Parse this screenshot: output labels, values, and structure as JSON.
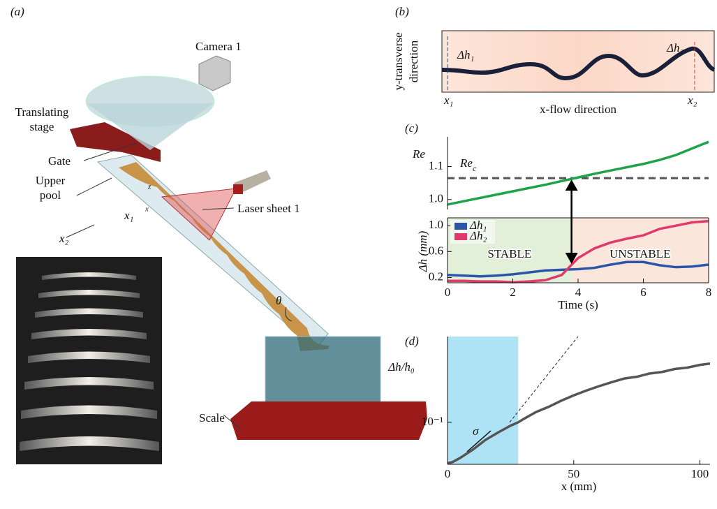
{
  "panel_a": {
    "label": "(a)",
    "camera": "Camera 1",
    "stage": [
      "Translating",
      "stage"
    ],
    "gate": "Gate",
    "pool": [
      "Upper",
      "pool"
    ],
    "laser": "Laser sheet 1",
    "x1": "x₁",
    "x2": "x₂",
    "z": "z",
    "x": "x",
    "theta": "θ",
    "scale": "Scale"
  },
  "panel_b": {
    "label": "(b)",
    "ylabel": [
      "y-transverse",
      "direction"
    ],
    "xlabel": "x-flow direction",
    "x1": "x₁",
    "x2": "x₂",
    "dh1": "Δh₁",
    "dh2": "Δh₂"
  },
  "chart_data": [
    {
      "type": "line",
      "panel": "(c)",
      "ylabel": "Re",
      "x": [
        0,
        0.5,
        1,
        1.5,
        2,
        2.5,
        3,
        3.5,
        4,
        4.5,
        5,
        5.5,
        6,
        6.5,
        7,
        7.5,
        8
      ],
      "xlim": [
        0,
        8
      ],
      "series": [
        {
          "color": "#1fa34a",
          "values": [
            0.985,
            0.995,
            1.005,
            1.015,
            1.025,
            1.035,
            1.045,
            1.056,
            1.067,
            1.078,
            1.088,
            1.098,
            1.108,
            1.12,
            1.135,
            1.155,
            1.175
          ]
        }
      ],
      "ylim": [
        0.97,
        1.19
      ],
      "yticks": [
        {
          "value": 1.0,
          "label": "1.0"
        },
        1.1
      ],
      "threshold": {
        "value": 1.065,
        "label": {
          "base": "Re",
          "sub": "c"
        },
        "color": "#555555"
      }
    },
    {
      "type": "line",
      "xlabel": "Time (s)",
      "ylabel": "Δh (mm)",
      "x": [
        0,
        0.5,
        1,
        1.5,
        2,
        2.5,
        3,
        3.5,
        4,
        4.5,
        5,
        5.5,
        6,
        6.5,
        7,
        7.5,
        8
      ],
      "xlim": [
        0,
        8
      ],
      "xticks": [
        0,
        2,
        4,
        6,
        8
      ],
      "series": [
        {
          "name": "Δh₁",
          "color": "#2a55a8",
          "values": [
            0.24,
            0.23,
            0.22,
            0.23,
            0.25,
            0.28,
            0.31,
            0.32,
            0.33,
            0.35,
            0.4,
            0.44,
            0.44,
            0.39,
            0.36,
            0.37,
            0.4
          ]
        },
        {
          "name": "Δh₂",
          "color": "#e03a6a",
          "values": [
            0.15,
            0.15,
            0.14,
            0.14,
            0.13,
            0.14,
            0.16,
            0.24,
            0.5,
            0.65,
            0.74,
            0.8,
            0.85,
            0.95,
            1.0,
            1.05,
            1.07
          ]
        }
      ],
      "ylim": [
        0.12,
        1.12
      ],
      "yticks": [
        0.2,
        0.6,
        {
          "value": 1.0,
          "label": "1.0"
        }
      ],
      "legend": "upper left",
      "regions": [
        {
          "label": "STABLE",
          "color": "#e2f0da",
          "x": [
            0,
            3.8
          ]
        },
        {
          "label": "UNSTABLE",
          "color": "#fbe6dc",
          "x": [
            3.8,
            8
          ]
        }
      ]
    },
    {
      "type": "line",
      "panel": "(d)",
      "xlabel": "x (mm)",
      "ylabel": "Δh/h₀",
      "ylog": true,
      "x": [
        0,
        2,
        5,
        10,
        15,
        20,
        25,
        28,
        30,
        35,
        40,
        45,
        50,
        55,
        60,
        65,
        70,
        75,
        80,
        85,
        90,
        95,
        100,
        104
      ],
      "series": [
        {
          "color": "#555555",
          "values": [
            0.041,
            0.042,
            0.046,
            0.055,
            0.068,
            0.08,
            0.093,
            0.1,
            0.107,
            0.125,
            0.14,
            0.16,
            0.18,
            0.2,
            0.22,
            0.24,
            0.26,
            0.27,
            0.29,
            0.3,
            0.32,
            0.33,
            0.35,
            0.36
          ]
        }
      ],
      "xlim": [
        0,
        104
      ],
      "xticks": [
        0,
        50,
        100
      ],
      "ylim": [
        0.04,
        0.65
      ],
      "yticks": [
        {
          "value": 0.1,
          "label": "10⁻¹"
        }
      ],
      "regions": [
        {
          "color": "#aee3f5",
          "x": [
            0,
            28
          ]
        }
      ],
      "fit": {
        "x": [
          24.6,
          51.7
        ],
        "values": [
          0.1,
          0.65
        ]
      },
      "annotation": "σ"
    }
  ]
}
